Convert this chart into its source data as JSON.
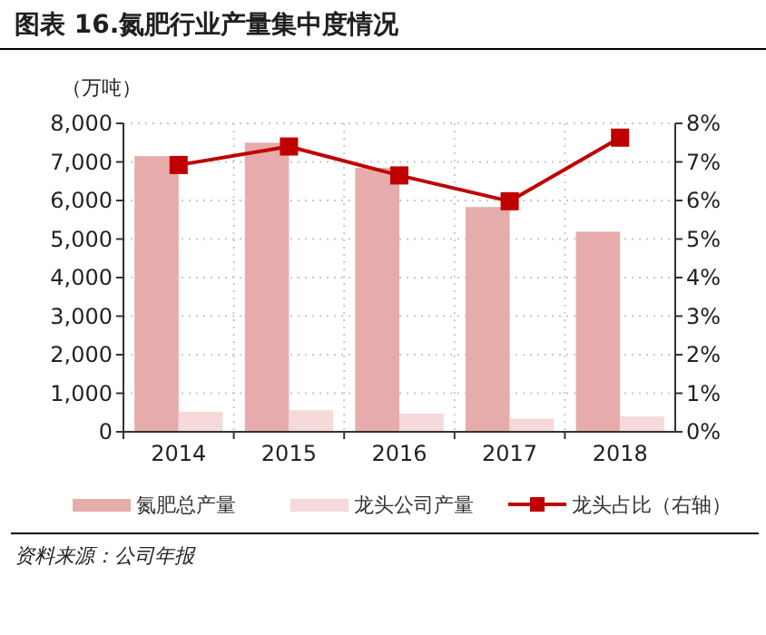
{
  "chart_data": {
    "type": "bar",
    "title": "图表 16.氮肥行业产量集中度情况",
    "ylabel": "（万吨）",
    "categories": [
      "2014",
      "2015",
      "2016",
      "2017",
      "2018"
    ],
    "series": [
      {
        "name": "氮肥总产量",
        "color": "#e6acab",
        "values": [
          7150,
          7500,
          6850,
          5830,
          5190
        ]
      },
      {
        "name": "龙头公司产量",
        "color": "#f6d9d9",
        "values": [
          520,
          560,
          470,
          340,
          400
        ]
      },
      {
        "name": "龙头占比（右轴）",
        "type": "line",
        "axis": "y2",
        "color": "#c00000",
        "marker": "square",
        "values": [
          6.92,
          7.4,
          6.65,
          5.98,
          7.63
        ]
      }
    ],
    "ylim": [
      0,
      8000
    ],
    "yticks": [
      {
        "value": 0,
        "label": "0"
      },
      {
        "value": 1000,
        "label": "1,000"
      },
      {
        "value": 2000,
        "label": "2,000"
      },
      {
        "value": 3000,
        "label": "3,000"
      },
      {
        "value": 4000,
        "label": "4,000"
      },
      {
        "value": 5000,
        "label": "5,000"
      },
      {
        "value": 6000,
        "label": "6,000"
      },
      {
        "value": 7000,
        "label": "7,000"
      },
      {
        "value": 8000,
        "label": "8,000"
      }
    ],
    "y2lim": [
      0,
      8
    ],
    "y2ticks": [
      {
        "value": 0,
        "label": "0%"
      },
      {
        "value": 1,
        "label": "1%"
      },
      {
        "value": 2,
        "label": "2%"
      },
      {
        "value": 3,
        "label": "3%"
      },
      {
        "value": 4,
        "label": "4%"
      },
      {
        "value": 5,
        "label": "5%"
      },
      {
        "value": 6,
        "label": "6%"
      },
      {
        "value": 7,
        "label": "7%"
      },
      {
        "value": 8,
        "label": "8%"
      }
    ],
    "grid": true,
    "legend": "bottom",
    "annotations": [
      "资料来源：公司年报"
    ]
  }
}
